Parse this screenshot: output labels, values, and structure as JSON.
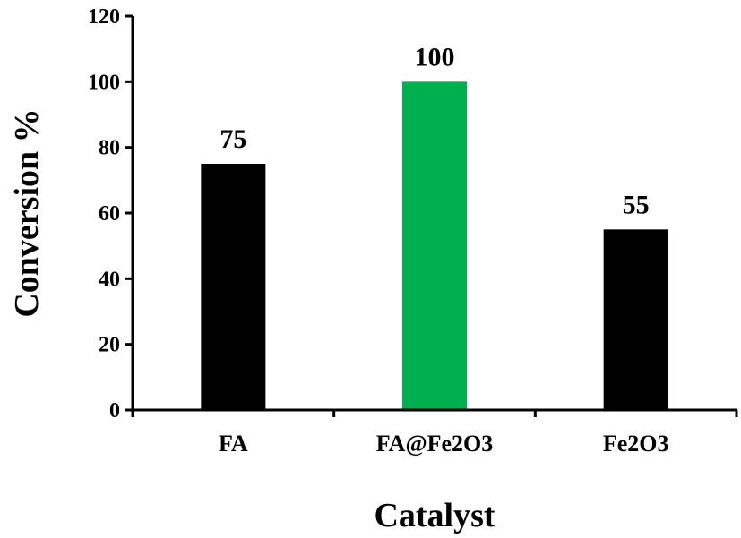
{
  "chart_data": {
    "type": "bar",
    "title": "",
    "xlabel": "Catalyst",
    "ylabel": "Conversion %",
    "categories": [
      "FA",
      "FA@Fe2O3",
      "Fe2O3"
    ],
    "values": [
      75,
      100,
      55
    ],
    "data_labels": [
      "75",
      "100",
      "55"
    ],
    "bar_colors": [
      "#000000",
      "#00b050",
      "#000000"
    ],
    "ylim": [
      0,
      120
    ],
    "yticks": [
      0,
      20,
      40,
      60,
      80,
      100,
      120
    ],
    "grid": false,
    "legend": "none"
  }
}
